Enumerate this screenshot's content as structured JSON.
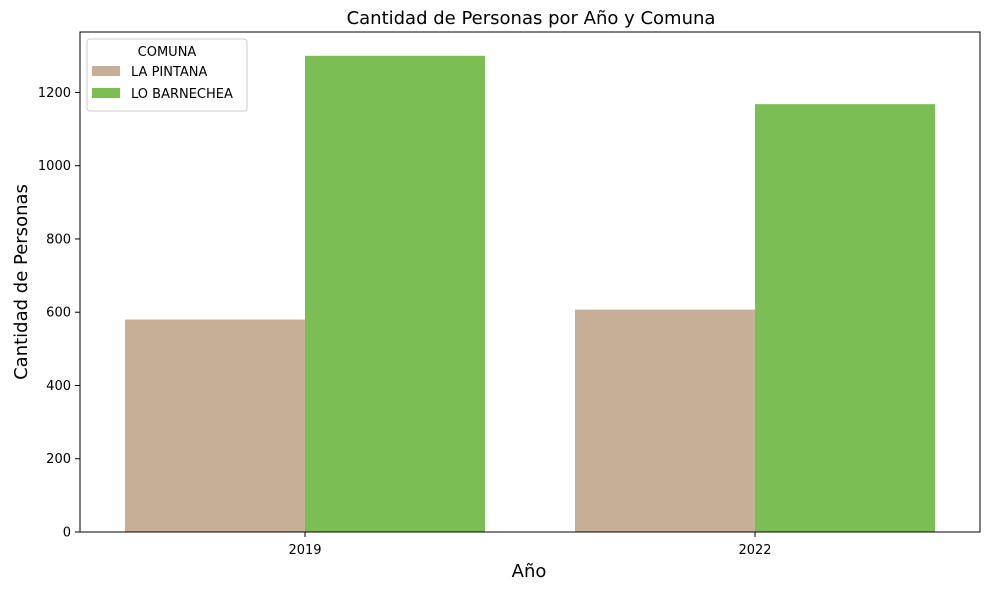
{
  "chart_data": {
    "type": "bar",
    "title": "Cantidad de Personas por Año y Comuna",
    "xlabel": "Año",
    "ylabel": "Cantidad de Personas",
    "categories": [
      "2019",
      "2022"
    ],
    "series": [
      {
        "name": "LA PINTANA",
        "values": [
          580,
          607
        ],
        "color": "#c6ae97"
      },
      {
        "name": "LO BARNECHEA",
        "values": [
          1300,
          1168
        ],
        "color": "#7bbe54"
      }
    ],
    "yticks": [
      0,
      200,
      400,
      600,
      800,
      1000,
      1200
    ],
    "ylim": [
      0,
      1365
    ],
    "legend": {
      "title": "COMUNA",
      "position": "top-left"
    },
    "grid": false
  }
}
